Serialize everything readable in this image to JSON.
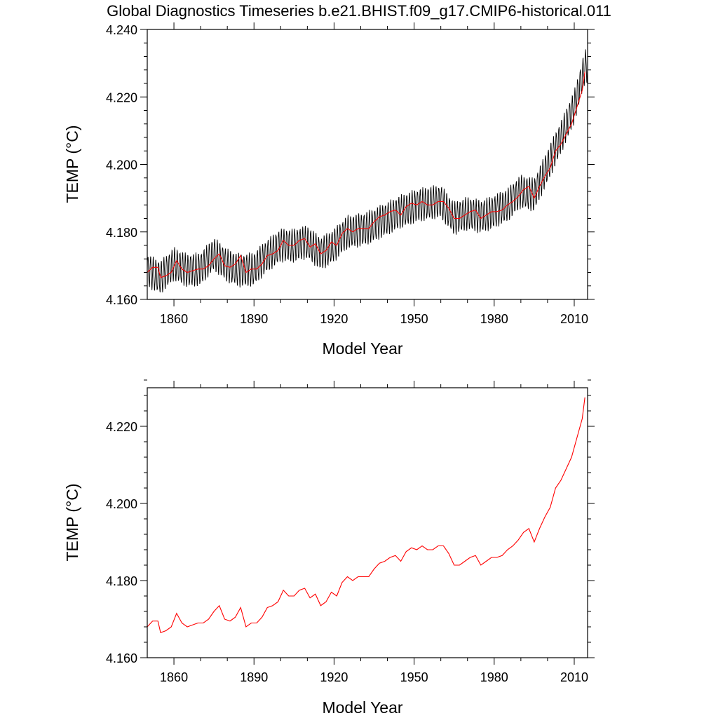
{
  "title": "Global Diagnostics Timeseries b.e21.BHIST.f09_g17.CMIP6-historical.011",
  "colors": {
    "monthly": "#000000",
    "annual": "#ff0000",
    "axes": "#000000"
  },
  "chart_data": [
    {
      "type": "line",
      "xlabel": "Model Year",
      "ylabel": "TEMP (°C)",
      "xlim": [
        1850,
        2015
      ],
      "ylim": [
        4.16,
        4.24
      ],
      "xticks": [
        1860,
        1890,
        1920,
        1950,
        1980,
        2010
      ],
      "xtick_labels": [
        "1860",
        "1890",
        "1920",
        "1950",
        "1980",
        "2010"
      ],
      "yticks": [
        4.16,
        4.18,
        4.2,
        4.22,
        4.24
      ],
      "ytick_labels": [
        "4.160",
        "4.180",
        "4.200",
        "4.220",
        "4.240"
      ],
      "series": [
        {
          "style": "monthly-cycle",
          "color": "#000000",
          "seasonal_amplitude": 0.0045,
          "x": [
            1850,
            1855,
            1860,
            1865,
            1870,
            1875,
            1880,
            1885,
            1890,
            1895,
            1900,
            1905,
            1910,
            1915,
            1920,
            1925,
            1930,
            1935,
            1940,
            1945,
            1950,
            1955,
            1960,
            1965,
            1970,
            1975,
            1980,
            1985,
            1990,
            1995,
            2000,
            2005,
            2010,
            2014
          ],
          "values": [
            4.1685,
            4.1665,
            4.1705,
            4.1685,
            4.169,
            4.1735,
            4.17,
            4.1685,
            4.169,
            4.173,
            4.176,
            4.176,
            4.177,
            4.1735,
            4.176,
            4.18,
            4.1805,
            4.182,
            4.184,
            4.186,
            4.1875,
            4.1885,
            4.189,
            4.184,
            4.1855,
            4.1845,
            4.186,
            4.188,
            4.192,
            4.191,
            4.1995,
            4.208,
            4.217,
            4.229
          ]
        },
        {
          "style": "annual-mean",
          "color": "#ff0000",
          "x": [
            1850,
            1852,
            1854,
            1855,
            1857,
            1859,
            1861,
            1863,
            1865,
            1867,
            1869,
            1871,
            1873,
            1875,
            1877,
            1879,
            1881,
            1883,
            1885,
            1887,
            1889,
            1891,
            1893,
            1895,
            1897,
            1899,
            1901,
            1903,
            1905,
            1907,
            1909,
            1911,
            1913,
            1915,
            1917,
            1919,
            1921,
            1923,
            1925,
            1927,
            1929,
            1931,
            1933,
            1935,
            1937,
            1939,
            1941,
            1943,
            1945,
            1947,
            1949,
            1951,
            1953,
            1955,
            1957,
            1959,
            1961,
            1963,
            1965,
            1967,
            1969,
            1971,
            1973,
            1975,
            1977,
            1979,
            1981,
            1983,
            1985,
            1987,
            1989,
            1991,
            1993,
            1995,
            1997,
            1999,
            2001,
            2003,
            2005,
            2007,
            2009,
            2011,
            2013,
            2014
          ],
          "values": [
            4.168,
            4.1695,
            4.1695,
            4.1665,
            4.167,
            4.168,
            4.1715,
            4.169,
            4.168,
            4.1685,
            4.169,
            4.169,
            4.17,
            4.172,
            4.1735,
            4.17,
            4.1695,
            4.1705,
            4.173,
            4.168,
            4.169,
            4.169,
            4.1705,
            4.173,
            4.1735,
            4.1745,
            4.1775,
            4.176,
            4.176,
            4.1775,
            4.178,
            4.1755,
            4.1765,
            4.1735,
            4.1745,
            4.177,
            4.176,
            4.1795,
            4.181,
            4.18,
            4.181,
            4.181,
            4.181,
            4.183,
            4.1845,
            4.185,
            4.186,
            4.1865,
            4.185,
            4.1875,
            4.1885,
            4.188,
            4.189,
            4.188,
            4.188,
            4.189,
            4.189,
            4.187,
            4.184,
            4.184,
            4.185,
            4.186,
            4.1865,
            4.184,
            4.185,
            4.186,
            4.186,
            4.1865,
            4.188,
            4.189,
            4.1905,
            4.1925,
            4.1935,
            4.19,
            4.1935,
            4.1965,
            4.199,
            4.204,
            4.206,
            4.209,
            4.212,
            4.217,
            4.222,
            4.2275
          ]
        }
      ]
    },
    {
      "type": "line",
      "xlabel": "Model Year",
      "ylabel": "TEMP (°C)",
      "xlim": [
        1850,
        2015
      ],
      "ylim": [
        4.16,
        4.23
      ],
      "xticks": [
        1860,
        1890,
        1920,
        1950,
        1980,
        2010
      ],
      "xtick_labels": [
        "1860",
        "1890",
        "1920",
        "1950",
        "1980",
        "2010"
      ],
      "yticks": [
        4.16,
        4.18,
        4.2,
        4.22
      ],
      "ytick_labels": [
        "4.160",
        "4.180",
        "4.200",
        "4.220"
      ],
      "series": [
        {
          "style": "annual-mean",
          "color": "#ff0000",
          "x": [
            1850,
            1852,
            1854,
            1855,
            1857,
            1859,
            1861,
            1863,
            1865,
            1867,
            1869,
            1871,
            1873,
            1875,
            1877,
            1879,
            1881,
            1883,
            1885,
            1887,
            1889,
            1891,
            1893,
            1895,
            1897,
            1899,
            1901,
            1903,
            1905,
            1907,
            1909,
            1911,
            1913,
            1915,
            1917,
            1919,
            1921,
            1923,
            1925,
            1927,
            1929,
            1931,
            1933,
            1935,
            1937,
            1939,
            1941,
            1943,
            1945,
            1947,
            1949,
            1951,
            1953,
            1955,
            1957,
            1959,
            1961,
            1963,
            1965,
            1967,
            1969,
            1971,
            1973,
            1975,
            1977,
            1979,
            1981,
            1983,
            1985,
            1987,
            1989,
            1991,
            1993,
            1995,
            1997,
            1999,
            2001,
            2003,
            2005,
            2007,
            2009,
            2011,
            2013,
            2014
          ],
          "values": [
            4.168,
            4.1695,
            4.1695,
            4.1665,
            4.167,
            4.168,
            4.1715,
            4.169,
            4.168,
            4.1685,
            4.169,
            4.169,
            4.17,
            4.172,
            4.1735,
            4.17,
            4.1695,
            4.1705,
            4.173,
            4.168,
            4.169,
            4.169,
            4.1705,
            4.173,
            4.1735,
            4.1745,
            4.1775,
            4.176,
            4.176,
            4.1775,
            4.178,
            4.1755,
            4.1765,
            4.1735,
            4.1745,
            4.177,
            4.176,
            4.1795,
            4.181,
            4.18,
            4.181,
            4.181,
            4.181,
            4.183,
            4.1845,
            4.185,
            4.186,
            4.1865,
            4.185,
            4.1875,
            4.1885,
            4.188,
            4.189,
            4.188,
            4.188,
            4.189,
            4.189,
            4.187,
            4.184,
            4.184,
            4.185,
            4.186,
            4.1865,
            4.184,
            4.185,
            4.186,
            4.186,
            4.1865,
            4.188,
            4.189,
            4.1905,
            4.1925,
            4.1935,
            4.19,
            4.1935,
            4.1965,
            4.199,
            4.204,
            4.206,
            4.209,
            4.212,
            4.217,
            4.222,
            4.2275
          ]
        }
      ]
    }
  ]
}
